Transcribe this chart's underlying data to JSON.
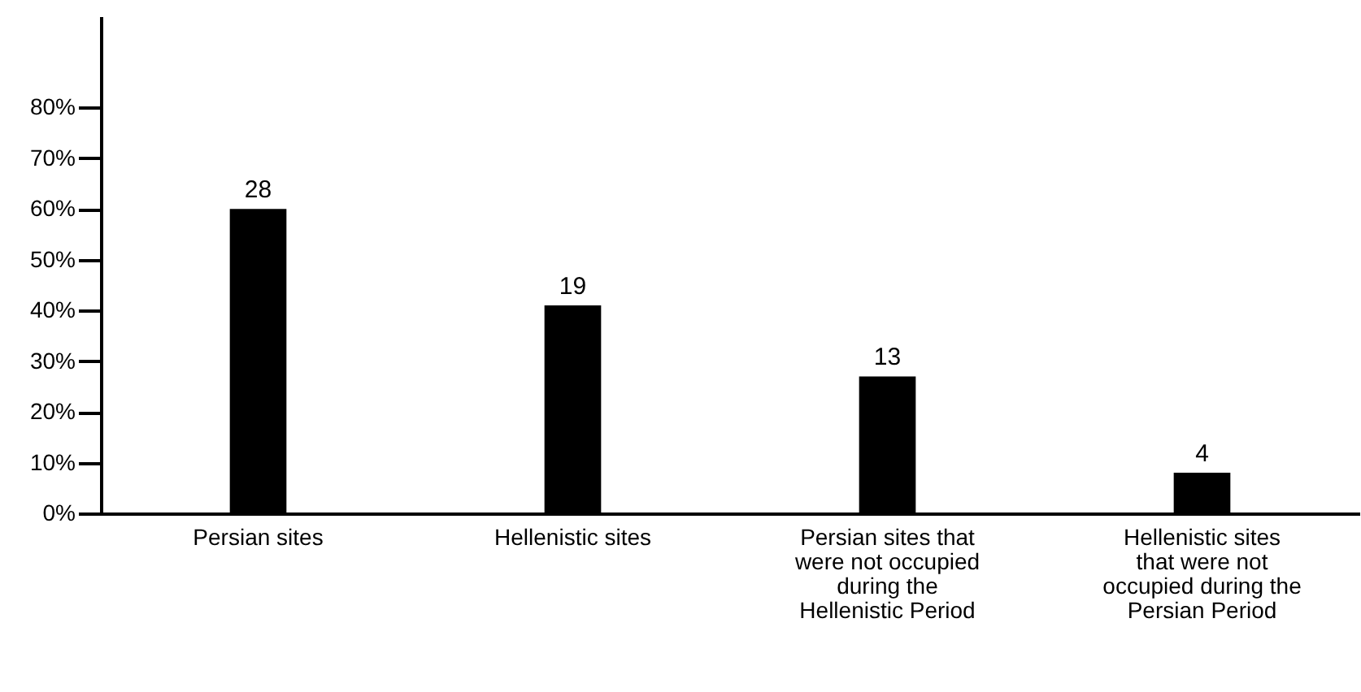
{
  "chart_data": {
    "type": "bar",
    "categories": [
      "Persian sites",
      "Hellenistic sites",
      "Persian sites that were not occupied during the Hellenistic Period",
      "Hellenistic sites that were not occupied during the Persian Period"
    ],
    "values": [
      60,
      41,
      27,
      8
    ],
    "annotations": [
      {
        "text": "28",
        "x": "Persian sites",
        "y": 60
      },
      {
        "text": "19",
        "x": "Hellenistic sites",
        "y": 41
      },
      {
        "text": "13",
        "x": "Persian sites that were not occupied during the Hellenistic Period",
        "y": 27
      },
      {
        "text": "4",
        "x": "Hellenistic sites that were not occupied during the Persian Period",
        "y": 8
      }
    ],
    "color": "#000000",
    "ylim": [
      0,
      98
    ],
    "yticks": [
      {
        "value": 0,
        "label": "0%"
      },
      {
        "value": 10,
        "label": "10%"
      },
      {
        "value": 20,
        "label": "20%"
      },
      {
        "value": 30,
        "label": "30%"
      },
      {
        "value": 40,
        "label": "40%"
      },
      {
        "value": 50,
        "label": "50%"
      },
      {
        "value": 60,
        "label": "60%"
      },
      {
        "value": 70,
        "label": "70%"
      },
      {
        "value": 80,
        "label": "80%"
      }
    ],
    "grid": false
  }
}
